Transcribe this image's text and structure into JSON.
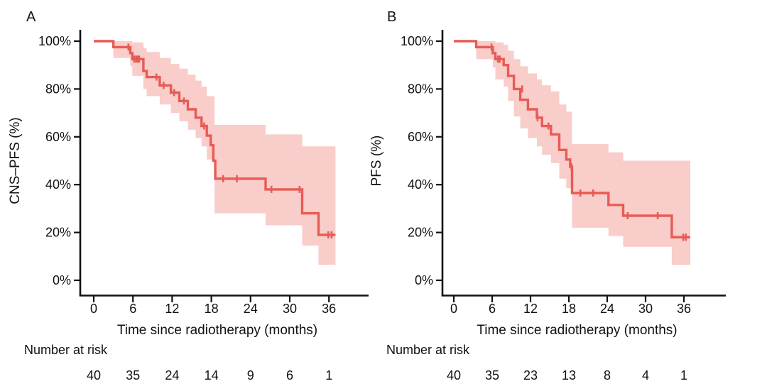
{
  "figure": {
    "background": "#ffffff",
    "curve_color": "#e85b55",
    "band_color": "#f8cdca",
    "axis_color": "#111111",
    "text_color": "#111111"
  },
  "chart_data": [
    {
      "type": "line",
      "subtype": "kaplan-meier-step",
      "panel_label": "A",
      "ylabel": "CNS–PFS (%)",
      "xlabel": "Time since radiotherapy (months)",
      "x_ticks": [
        0,
        6,
        12,
        18,
        24,
        30,
        36
      ],
      "y_ticks": [
        0,
        20,
        40,
        60,
        80,
        100
      ],
      "y_tick_suffix": "%",
      "ylim": [
        0,
        100
      ],
      "xlim": [
        0,
        42
      ],
      "grid": false,
      "legend": "none",
      "end_time": 37,
      "steps": [
        [
          0,
          100
        ],
        [
          3,
          97.5
        ],
        [
          5.6,
          95
        ],
        [
          5.9,
          92.5
        ],
        [
          7.6,
          87.5
        ],
        [
          8.1,
          85
        ],
        [
          10.1,
          81.5
        ],
        [
          11.8,
          78.5
        ],
        [
          13.1,
          75
        ],
        [
          14.4,
          71.5
        ],
        [
          15.6,
          68
        ],
        [
          16.5,
          64.5
        ],
        [
          17.3,
          60.5
        ],
        [
          17.9,
          56.5
        ],
        [
          18.3,
          50
        ],
        [
          18.6,
          42.5
        ],
        [
          26.3,
          38
        ],
        [
          31.9,
          28
        ],
        [
          34.4,
          19
        ]
      ],
      "censors": [
        [
          5.3,
          97.5
        ],
        [
          6.2,
          92.5
        ],
        [
          6.5,
          92.5
        ],
        [
          6.75,
          92.5
        ],
        [
          6.95,
          92.5
        ],
        [
          9.6,
          85
        ],
        [
          10.7,
          81.5
        ],
        [
          12.3,
          78.5
        ],
        [
          13.8,
          75
        ],
        [
          16.9,
          64.5
        ],
        [
          18.3,
          52
        ],
        [
          19.8,
          42.5
        ],
        [
          21.9,
          42.5
        ],
        [
          27.2,
          38
        ],
        [
          31.5,
          38
        ],
        [
          35.9,
          19
        ],
        [
          36.4,
          19
        ]
      ],
      "ci_band": [
        [
          3,
          5.6,
          100,
          93
        ],
        [
          5.6,
          5.9,
          100,
          89.5
        ],
        [
          5.9,
          7.6,
          99.5,
          85.5
        ],
        [
          7.6,
          8.1,
          97,
          80
        ],
        [
          8.1,
          10.1,
          95.5,
          77
        ],
        [
          10.1,
          11.8,
          93,
          73.5
        ],
        [
          11.8,
          13.1,
          90.5,
          70
        ],
        [
          13.1,
          14.4,
          88.5,
          66.5
        ],
        [
          14.4,
          15.6,
          86,
          63
        ],
        [
          15.6,
          16.5,
          83.5,
          59.5
        ],
        [
          16.5,
          17.3,
          81,
          56
        ],
        [
          17.3,
          18.5,
          77,
          50.5
        ],
        [
          18.5,
          26.3,
          65,
          28
        ],
        [
          26.3,
          31.9,
          61,
          23
        ],
        [
          31.9,
          34.4,
          56,
          14.5
        ],
        [
          34.4,
          37,
          56,
          6.5
        ]
      ],
      "number_at_risk": {
        "label": "Number at risk",
        "times": [
          0,
          6,
          12,
          18,
          24,
          30,
          36
        ],
        "counts": [
          40,
          35,
          24,
          14,
          9,
          6,
          1
        ]
      }
    },
    {
      "type": "line",
      "subtype": "kaplan-meier-step",
      "panel_label": "B",
      "ylabel": "PFS (%)",
      "xlabel": "Time since radiotherapy (months)",
      "x_ticks": [
        0,
        6,
        12,
        18,
        24,
        30,
        36
      ],
      "y_ticks": [
        0,
        20,
        40,
        60,
        80,
        100
      ],
      "y_tick_suffix": "%",
      "ylim": [
        0,
        100
      ],
      "xlim": [
        0,
        42
      ],
      "grid": false,
      "legend": "none",
      "end_time": 37,
      "steps": [
        [
          0,
          100
        ],
        [
          3.5,
          97.5
        ],
        [
          6.1,
          95
        ],
        [
          6.5,
          92.5
        ],
        [
          7.8,
          90
        ],
        [
          8.5,
          85.5
        ],
        [
          9.4,
          80
        ],
        [
          10.4,
          75.5
        ],
        [
          11.6,
          71.5
        ],
        [
          13,
          68
        ],
        [
          13.8,
          64.5
        ],
        [
          15.2,
          61
        ],
        [
          16.5,
          54.5
        ],
        [
          17.6,
          50.5
        ],
        [
          18.2,
          47.5
        ],
        [
          18.5,
          36.5
        ],
        [
          24.2,
          31.5
        ],
        [
          26.5,
          27
        ],
        [
          34.1,
          18
        ]
      ],
      "censors": [
        [
          5.9,
          97.5
        ],
        [
          6.9,
          92.5
        ],
        [
          7.2,
          92.5
        ],
        [
          10.7,
          80
        ],
        [
          13.1,
          68
        ],
        [
          14.8,
          64.5
        ],
        [
          18.4,
          47.5
        ],
        [
          19.8,
          36.5
        ],
        [
          21.8,
          36.5
        ],
        [
          27.2,
          27
        ],
        [
          31.9,
          27
        ],
        [
          35.9,
          18
        ],
        [
          36.3,
          18
        ]
      ],
      "ci_band": [
        [
          3.5,
          6.1,
          100,
          92.5
        ],
        [
          6.1,
          6.5,
          100,
          89
        ],
        [
          6.5,
          7.8,
          99.5,
          84
        ],
        [
          7.8,
          8.5,
          98.5,
          81
        ],
        [
          8.5,
          9.4,
          96,
          75
        ],
        [
          9.4,
          10.4,
          92.5,
          68.5
        ],
        [
          10.4,
          11.6,
          89.5,
          63.5
        ],
        [
          11.6,
          13,
          86.5,
          59.5
        ],
        [
          13,
          13.8,
          84,
          56
        ],
        [
          13.8,
          15.2,
          81.5,
          52.5
        ],
        [
          15.2,
          16.5,
          79,
          49
        ],
        [
          16.5,
          17.6,
          73.5,
          42.5
        ],
        [
          17.6,
          18.5,
          70.5,
          38.5
        ],
        [
          18.5,
          24.2,
          57,
          22
        ],
        [
          24.2,
          26.5,
          53.5,
          18.5
        ],
        [
          26.5,
          34.1,
          50,
          14
        ],
        [
          34.1,
          37,
          50,
          6.5
        ]
      ],
      "number_at_risk": {
        "label": "Number at risk",
        "times": [
          0,
          6,
          12,
          18,
          24,
          30,
          36
        ],
        "counts": [
          40,
          35,
          23,
          13,
          8,
          4,
          1
        ]
      }
    }
  ]
}
